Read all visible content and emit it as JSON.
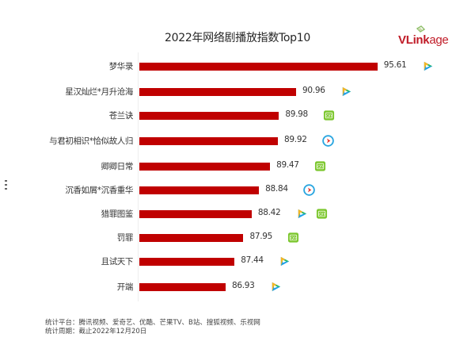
{
  "header": {
    "title": "2022年网络剧播放指数Top10",
    "logo_text_main": "VLink",
    "logo_text_tail": "age"
  },
  "colors": {
    "bar": "#c00000",
    "logo_red": "#c01c28",
    "tencent_green": "#2ebd59",
    "tencent_yellow": "#f5b622",
    "tencent_blue": "#1ea0e8",
    "iqiyi_green": "#7bc62d",
    "youku_blue": "#2ba6e0",
    "youku_red": "#e8382f"
  },
  "chart_data": {
    "type": "bar",
    "orientation": "horizontal",
    "title": "2022年网络剧播放指数Top10",
    "xlabel": "",
    "ylabel": "",
    "categories": [
      "梦华录",
      "星汉灿烂*月升沧海",
      "苍兰诀",
      "与君初相识*恰似故人归",
      "卿卿日常",
      "沉香如屑*沉香重华",
      "猎罪图鉴",
      "罚罪",
      "且试天下",
      "开端"
    ],
    "values": [
      95.61,
      90.96,
      89.98,
      89.92,
      89.47,
      88.84,
      88.42,
      87.95,
      87.44,
      86.93
    ],
    "value_labels": [
      "95.61",
      "90.96",
      "89.98",
      "89.92",
      "89.47",
      "88.84",
      "88.42",
      "87.95",
      "87.44",
      "86.93"
    ],
    "platforms": [
      [
        "tencent-video"
      ],
      [
        "tencent-video"
      ],
      [
        "iqiyi"
      ],
      [
        "youku"
      ],
      [
        "iqiyi"
      ],
      [
        "youku"
      ],
      [
        "tencent-video",
        "iqiyi"
      ],
      [
        "iqiyi"
      ],
      [
        "tencent-video"
      ],
      [
        "tencent-video"
      ]
    ],
    "xlim": [
      82,
      96
    ],
    "grid": false,
    "legend": "none",
    "data_labels": true
  },
  "footer": {
    "platforms_line": "统计平台：腾讯视频、爱奇艺、优酷、芒果TV、B站、搜狐视频、乐视网",
    "period_line": "统计周期：截止2022年12月20日"
  }
}
